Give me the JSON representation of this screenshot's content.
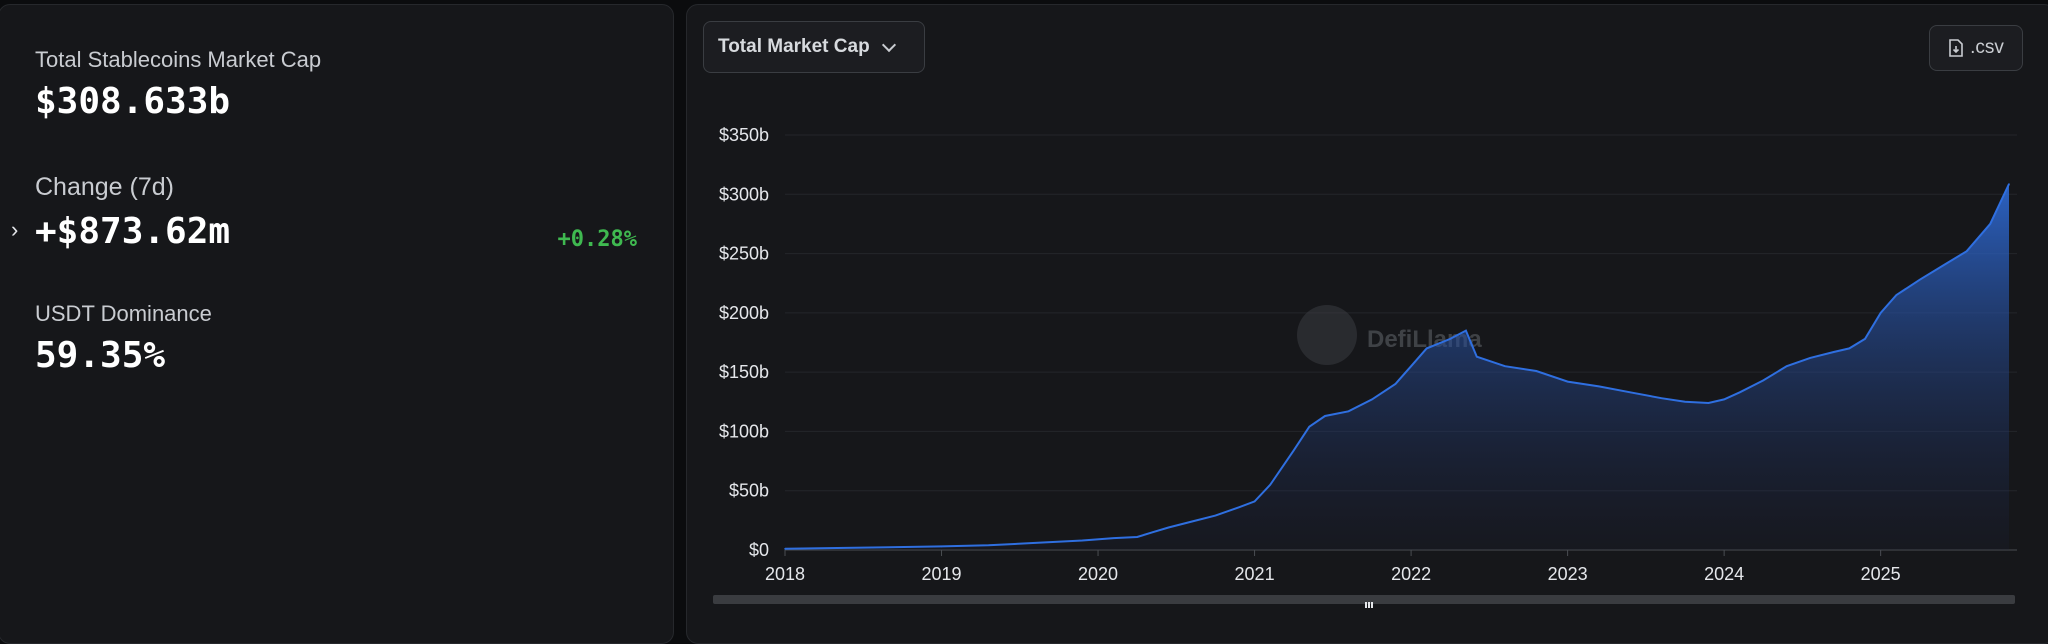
{
  "stats": {
    "market_cap": {
      "label": "Total Stablecoins Market Cap",
      "value": "$308.633b"
    },
    "change": {
      "label": "Change (7d)",
      "value": "+$873.62m",
      "percent": "+0.28%"
    },
    "dominance": {
      "label": "USDT Dominance",
      "value": "59.35%"
    }
  },
  "toolbar": {
    "dropdown_selected": "Total Market Cap",
    "csv_label": ".csv"
  },
  "watermark": "DefiLlama",
  "colors": {
    "line": "#2f6fe0",
    "positive": "#3fb950",
    "panel": "#16171a"
  },
  "chart_data": {
    "type": "area",
    "title": "",
    "xlabel": "",
    "ylabel": "",
    "x_ticks": [
      "2018",
      "2019",
      "2020",
      "2021",
      "2022",
      "2023",
      "2024",
      "2025"
    ],
    "y_ticks": [
      "$0",
      "$50b",
      "$100b",
      "$150b",
      "$200b",
      "$250b",
      "$300b",
      "$350b"
    ],
    "ylim": [
      0,
      350
    ],
    "xlim": [
      2018.0,
      2025.82
    ],
    "grid": true,
    "series": [
      {
        "x": [
          2018.0,
          2018.5,
          2019.0,
          2019.3,
          2019.6,
          2019.9,
          2020.1,
          2020.25,
          2020.35,
          2020.45,
          2020.6,
          2020.75,
          2020.9,
          2021.0,
          2021.1,
          2021.25,
          2021.35,
          2021.45,
          2021.6,
          2021.75,
          2021.9,
          2022.0,
          2022.1,
          2022.25,
          2022.35,
          2022.42,
          2022.6,
          2022.8,
          2023.0,
          2023.2,
          2023.4,
          2023.6,
          2023.75,
          2023.9,
          2024.0,
          2024.1,
          2024.25,
          2024.4,
          2024.55,
          2024.7,
          2024.8,
          2024.9,
          2025.0,
          2025.1,
          2025.25,
          2025.4,
          2025.55,
          2025.7,
          2025.82
        ],
        "y": [
          1,
          2,
          3,
          4,
          6,
          8,
          10,
          11,
          15,
          19,
          24,
          29,
          36,
          41,
          55,
          84,
          104,
          113,
          117,
          127,
          140,
          155,
          170,
          178,
          185,
          163,
          155,
          151,
          142,
          138,
          133,
          128,
          125,
          124,
          127,
          133,
          143,
          155,
          162,
          167,
          170,
          178,
          200,
          215,
          228,
          240,
          252,
          275,
          308.633
        ]
      }
    ]
  }
}
